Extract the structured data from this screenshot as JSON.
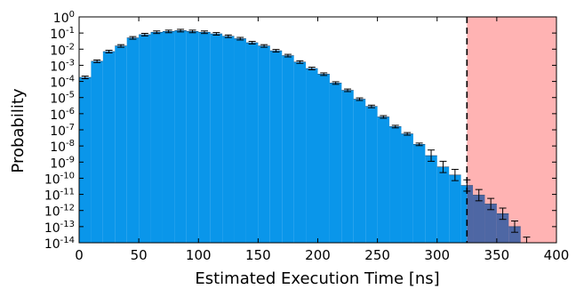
{
  "chart_data": {
    "type": "bar",
    "title": "",
    "xlabel": "Estimated Execution Time [ns]",
    "ylabel": "Probability",
    "xlim": [
      0,
      400
    ],
    "ylim_log10": [
      -14,
      0
    ],
    "yscale": "log",
    "bin_width_ns": 10,
    "x_ticks": [
      0,
      50,
      100,
      150,
      200,
      250,
      300,
      350,
      400
    ],
    "y_ticks": [
      {
        "base": "10",
        "exp": "0"
      },
      {
        "base": "10",
        "exp": "-1"
      },
      {
        "base": "10",
        "exp": "-2"
      },
      {
        "base": "10",
        "exp": "-3"
      },
      {
        "base": "10",
        "exp": "-4"
      },
      {
        "base": "10",
        "exp": "-5"
      },
      {
        "base": "10",
        "exp": "-6"
      },
      {
        "base": "10",
        "exp": "-7"
      },
      {
        "base": "10",
        "exp": "-8"
      },
      {
        "base": "10",
        "exp": "-9"
      },
      {
        "base": "10",
        "exp": "-10"
      },
      {
        "base": "10",
        "exp": "-11"
      },
      {
        "base": "10",
        "exp": "-12"
      },
      {
        "base": "10",
        "exp": "-13"
      },
      {
        "base": "10",
        "exp": "-14"
      }
    ],
    "threshold_x": 325,
    "bins": [
      {
        "x": 0,
        "log10_p": -3.75
      },
      {
        "x": 10,
        "log10_p": -2.75
      },
      {
        "x": 20,
        "log10_p": -2.15
      },
      {
        "x": 30,
        "log10_p": -1.8
      },
      {
        "x": 40,
        "log10_p": -1.3
      },
      {
        "x": 50,
        "log10_p": -1.1
      },
      {
        "x": 60,
        "log10_p": -0.95
      },
      {
        "x": 70,
        "log10_p": -0.9
      },
      {
        "x": 80,
        "log10_p": -0.85
      },
      {
        "x": 90,
        "log10_p": -0.9
      },
      {
        "x": 100,
        "log10_p": -0.95
      },
      {
        "x": 110,
        "log10_p": -1.05
      },
      {
        "x": 120,
        "log10_p": -1.2
      },
      {
        "x": 130,
        "log10_p": -1.35
      },
      {
        "x": 140,
        "log10_p": -1.6
      },
      {
        "x": 150,
        "log10_p": -1.8
      },
      {
        "x": 160,
        "log10_p": -2.1
      },
      {
        "x": 170,
        "log10_p": -2.4
      },
      {
        "x": 180,
        "log10_p": -2.8
      },
      {
        "x": 190,
        "log10_p": -3.2
      },
      {
        "x": 200,
        "log10_p": -3.55
      },
      {
        "x": 210,
        "log10_p": -4.1
      },
      {
        "x": 220,
        "log10_p": -4.55
      },
      {
        "x": 230,
        "log10_p": -5.1
      },
      {
        "x": 240,
        "log10_p": -5.55
      },
      {
        "x": 250,
        "log10_p": -6.2
      },
      {
        "x": 260,
        "log10_p": -6.8
      },
      {
        "x": 270,
        "log10_p": -7.25
      },
      {
        "x": 280,
        "log10_p": -7.9
      },
      {
        "x": 290,
        "log10_p": -8.6
      },
      {
        "x": 300,
        "log10_p": -9.3
      },
      {
        "x": 310,
        "log10_p": -9.8
      },
      {
        "x": 320,
        "log10_p": -10.45
      },
      {
        "x": 330,
        "log10_p": -11.05
      },
      {
        "x": 340,
        "log10_p": -11.6
      },
      {
        "x": 350,
        "log10_p": -12.2
      },
      {
        "x": 360,
        "log10_p": -13.0
      },
      {
        "x": 370,
        "log10_p": -14.0
      }
    ],
    "colors": {
      "bar": "#0a96ea",
      "bar_beyond_threshold": "#4e67a4",
      "region_beyond_threshold": "#ffb3b3",
      "error_bar": "#000000",
      "threshold_line": "#000000"
    },
    "grid": false,
    "legend": "none"
  }
}
